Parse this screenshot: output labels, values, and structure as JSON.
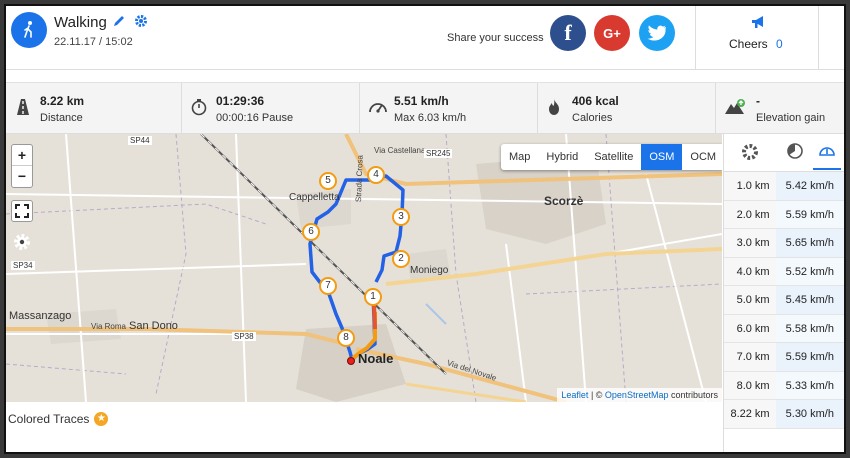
{
  "activity": {
    "type": "Walking",
    "datetime": "22.11.17 / 15:02"
  },
  "share": {
    "text": "Share your success",
    "facebook": "f",
    "google_plus": "G+",
    "twitter_icon": "twitter-bird-icon"
  },
  "cheers": {
    "label": "Cheers",
    "count": "0"
  },
  "stats": {
    "distance": {
      "value": "8.22 km",
      "label": "Distance"
    },
    "duration": {
      "value": "01:29:36",
      "label": "00:00:16 Pause"
    },
    "speed": {
      "value": "5.51 km/h",
      "label": "Max 6.03 km/h"
    },
    "calories": {
      "value": "406 kcal",
      "label": "Calories"
    },
    "elevation": {
      "value": "-",
      "label": "Elevation gain"
    }
  },
  "map": {
    "zoom_in": "+",
    "zoom_out": "−",
    "layers": [
      "Map",
      "Hybrid",
      "Satellite",
      "OSM",
      "OCM"
    ],
    "active_layer": "OSM",
    "attribution_link1": "Leaflet",
    "attribution_sep": " | © ",
    "attribution_link2": "OpenStreetMap",
    "attribution_end": " contributors",
    "places": [
      "Cappelletta",
      "Scorzè",
      "Moniego",
      "Noale",
      "Massanzago",
      "San Dono",
      "Strada Crosa",
      "Via Castellana",
      "SP44",
      "SR245",
      "SP34",
      "SP38",
      "Via Roma",
      "Via del Novale"
    ],
    "markers": [
      "1",
      "2",
      "3",
      "4",
      "5",
      "6",
      "7",
      "8"
    ]
  },
  "splits": [
    {
      "km": "1.0 km",
      "speed": "5.42 km/h"
    },
    {
      "km": "2.0 km",
      "speed": "5.59 km/h"
    },
    {
      "km": "3.0 km",
      "speed": "5.65 km/h"
    },
    {
      "km": "4.0 km",
      "speed": "5.52 km/h"
    },
    {
      "km": "5.0 km",
      "speed": "5.45 km/h"
    },
    {
      "km": "6.0 km",
      "speed": "5.58 km/h"
    },
    {
      "km": "7.0 km",
      "speed": "5.59 km/h"
    },
    {
      "km": "8.0 km",
      "speed": "5.33 km/h"
    },
    {
      "km": "8.22 km",
      "speed": "5.30 km/h"
    }
  ],
  "footer": {
    "colored_traces": "Colored Traces"
  },
  "colors": {
    "accent": "#1a73e8",
    "track_blue": "#1f5ee8",
    "track_orange": "#f39c12",
    "track_red": "#e74c3c"
  }
}
